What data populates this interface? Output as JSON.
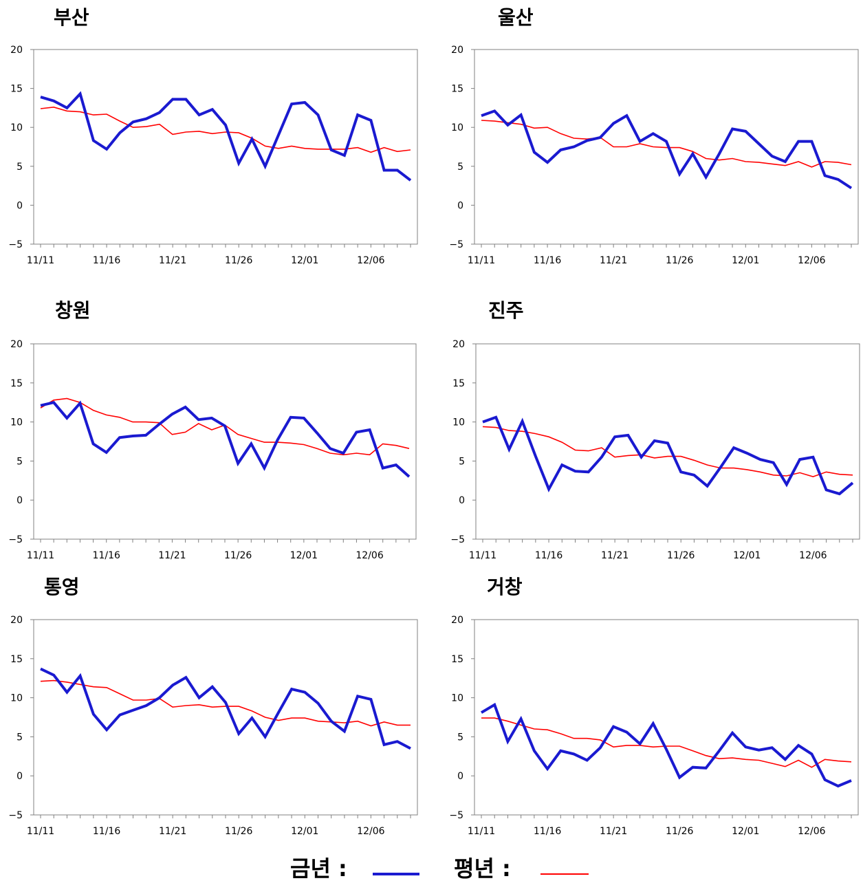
{
  "chart_data": [
    {
      "type": "line",
      "title": "부산",
      "x": [
        "11/11",
        "11/12",
        "11/13",
        "11/14",
        "11/15",
        "11/16",
        "11/17",
        "11/18",
        "11/19",
        "11/20",
        "11/21",
        "11/22",
        "11/23",
        "11/24",
        "11/25",
        "11/26",
        "11/27",
        "11/28",
        "11/29",
        "11/30",
        "12/01",
        "12/02",
        "12/03",
        "12/04",
        "12/05",
        "12/06",
        "12/07",
        "12/08",
        "12/09"
      ],
      "x_tick_labels": [
        "11/11",
        "11/16",
        "11/21",
        "11/26",
        "12/01",
        "12/06"
      ],
      "ylim": [
        -5,
        20
      ],
      "y_ticks": [
        -5,
        0,
        5,
        10,
        15,
        20
      ],
      "series": [
        {
          "name": "금년",
          "color": "#1a1ad0",
          "values": [
            13.9,
            13.4,
            12.5,
            14.3,
            8.3,
            7.2,
            9.3,
            10.7,
            11.1,
            11.9,
            13.6,
            13.6,
            11.6,
            12.3,
            10.3,
            5.4,
            8.5,
            5.0,
            9.0,
            13.0,
            13.2,
            11.6,
            7.1,
            6.4,
            11.6,
            10.9,
            4.5,
            4.5,
            3.2
          ]
        },
        {
          "name": "평년",
          "color": "#ff0000",
          "values": [
            12.4,
            12.6,
            12.1,
            12.0,
            11.6,
            11.7,
            10.8,
            10.0,
            10.1,
            10.4,
            9.1,
            9.4,
            9.5,
            9.2,
            9.4,
            9.3,
            8.6,
            7.6,
            7.3,
            7.6,
            7.3,
            7.2,
            7.2,
            7.2,
            7.4,
            6.8,
            7.4,
            6.9,
            7.1
          ]
        }
      ]
    },
    {
      "type": "line",
      "title": "울산",
      "x": [
        "11/11",
        "11/12",
        "11/13",
        "11/14",
        "11/15",
        "11/16",
        "11/17",
        "11/18",
        "11/19",
        "11/20",
        "11/21",
        "11/22",
        "11/23",
        "11/24",
        "11/25",
        "11/26",
        "11/27",
        "11/28",
        "11/29",
        "11/30",
        "12/01",
        "12/02",
        "12/03",
        "12/04",
        "12/05",
        "12/06",
        "12/07",
        "12/08",
        "12/09"
      ],
      "x_tick_labels": [
        "11/11",
        "11/16",
        "11/21",
        "11/26",
        "12/01",
        "12/06"
      ],
      "ylim": [
        -5,
        20
      ],
      "y_ticks": [
        -5,
        0,
        5,
        10,
        15,
        20
      ],
      "series": [
        {
          "name": "금년",
          "color": "#1a1ad0",
          "values": [
            11.5,
            12.1,
            10.3,
            11.6,
            6.8,
            5.5,
            7.1,
            7.5,
            8.3,
            8.7,
            10.5,
            11.5,
            8.2,
            9.2,
            8.2,
            4.0,
            6.6,
            3.6,
            6.6,
            9.8,
            9.5,
            7.9,
            6.3,
            5.6,
            8.2,
            8.2,
            3.8,
            3.3,
            2.2
          ]
        },
        {
          "name": "평년",
          "color": "#ff0000",
          "values": [
            10.9,
            10.8,
            10.6,
            10.4,
            9.9,
            10.0,
            9.2,
            8.6,
            8.5,
            8.7,
            7.5,
            7.5,
            7.9,
            7.5,
            7.4,
            7.4,
            6.9,
            6.0,
            5.8,
            6.0,
            5.6,
            5.5,
            5.3,
            5.1,
            5.6,
            4.9,
            5.6,
            5.5,
            5.2
          ]
        }
      ]
    },
    {
      "type": "line",
      "title": "창원",
      "x": [
        "11/11",
        "11/12",
        "11/13",
        "11/14",
        "11/15",
        "11/16",
        "11/17",
        "11/18",
        "11/19",
        "11/20",
        "11/21",
        "11/22",
        "11/23",
        "11/24",
        "11/25",
        "11/26",
        "11/27",
        "11/28",
        "11/29",
        "11/30",
        "12/01",
        "12/02",
        "12/03",
        "12/04",
        "12/05",
        "12/06",
        "12/07",
        "12/08",
        "12/09"
      ],
      "x_tick_labels": [
        "11/11",
        "11/16",
        "11/21",
        "11/26",
        "12/01",
        "12/06"
      ],
      "ylim": [
        -5,
        20
      ],
      "y_ticks": [
        -5,
        0,
        5,
        10,
        15,
        20
      ],
      "series": [
        {
          "name": "금년",
          "color": "#1a1ad0",
          "values": [
            12.1,
            12.5,
            10.5,
            12.4,
            7.2,
            6.1,
            8.0,
            8.2,
            8.3,
            9.7,
            11.0,
            11.9,
            10.3,
            10.5,
            9.5,
            4.7,
            7.2,
            4.1,
            7.7,
            10.6,
            10.5,
            8.6,
            6.6,
            6.0,
            8.7,
            9.0,
            4.1,
            4.5,
            3.0
          ]
        },
        {
          "name": "평년",
          "color": "#ff0000",
          "values": [
            11.8,
            12.8,
            13.0,
            12.5,
            11.5,
            10.9,
            10.6,
            10.0,
            10.0,
            9.9,
            8.4,
            8.7,
            9.8,
            9.0,
            9.6,
            8.4,
            7.9,
            7.4,
            7.4,
            7.3,
            7.1,
            6.6,
            6.0,
            5.8,
            6.0,
            5.8,
            7.2,
            7.0,
            6.6
          ]
        }
      ]
    },
    {
      "type": "line",
      "title": "진주",
      "x": [
        "11/11",
        "11/12",
        "11/13",
        "11/14",
        "11/15",
        "11/16",
        "11/17",
        "11/18",
        "11/19",
        "11/20",
        "11/21",
        "11/22",
        "11/23",
        "11/24",
        "11/25",
        "11/26",
        "11/27",
        "11/28",
        "11/29",
        "11/30",
        "12/01",
        "12/02",
        "12/03",
        "12/04",
        "12/05",
        "12/06",
        "12/07",
        "12/08",
        "12/09"
      ],
      "x_tick_labels": [
        "11/11",
        "11/16",
        "11/21",
        "11/26",
        "12/01",
        "12/06"
      ],
      "ylim": [
        -5,
        20
      ],
      "y_ticks": [
        -5,
        0,
        5,
        10,
        15,
        20
      ],
      "series": [
        {
          "name": "금년",
          "color": "#1a1ad0",
          "values": [
            10.0,
            10.6,
            6.5,
            10.1,
            5.6,
            1.4,
            4.5,
            3.7,
            3.6,
            5.5,
            8.1,
            8.3,
            5.5,
            7.6,
            7.3,
            3.6,
            3.2,
            1.8,
            4.2,
            6.7,
            6.0,
            5.2,
            4.8,
            2.0,
            5.2,
            5.5,
            1.3,
            0.8,
            2.2
          ]
        },
        {
          "name": "평년",
          "color": "#ff0000",
          "values": [
            9.4,
            9.3,
            8.9,
            8.8,
            8.5,
            8.1,
            7.4,
            6.4,
            6.3,
            6.7,
            5.5,
            5.7,
            5.8,
            5.4,
            5.6,
            5.6,
            5.1,
            4.5,
            4.1,
            4.1,
            3.9,
            3.6,
            3.2,
            3.1,
            3.5,
            3.0,
            3.6,
            3.3,
            3.2
          ]
        }
      ]
    },
    {
      "type": "line",
      "title": "통영",
      "x": [
        "11/11",
        "11/12",
        "11/13",
        "11/14",
        "11/15",
        "11/16",
        "11/17",
        "11/18",
        "11/19",
        "11/20",
        "11/21",
        "11/22",
        "11/23",
        "11/24",
        "11/25",
        "11/26",
        "11/27",
        "11/28",
        "11/29",
        "11/30",
        "12/01",
        "12/02",
        "12/03",
        "12/04",
        "12/05",
        "12/06",
        "12/07",
        "12/08",
        "12/09"
      ],
      "x_tick_labels": [
        "11/11",
        "11/16",
        "11/21",
        "11/26",
        "12/01",
        "12/06"
      ],
      "ylim": [
        -5,
        20
      ],
      "y_ticks": [
        -5,
        0,
        5,
        10,
        15,
        20
      ],
      "series": [
        {
          "name": "금년",
          "color": "#1a1ad0",
          "values": [
            13.7,
            12.9,
            10.7,
            12.8,
            7.9,
            5.9,
            7.8,
            8.4,
            9.0,
            10.0,
            11.6,
            12.6,
            10.0,
            11.4,
            9.4,
            5.4,
            7.4,
            5.0,
            8.1,
            11.1,
            10.7,
            9.3,
            7.0,
            5.7,
            10.2,
            9.8,
            4.0,
            4.4,
            3.5
          ]
        },
        {
          "name": "평년",
          "color": "#ff0000",
          "values": [
            12.1,
            12.2,
            12.0,
            11.7,
            11.4,
            11.3,
            10.5,
            9.7,
            9.7,
            9.9,
            8.8,
            9.0,
            9.1,
            8.8,
            8.9,
            8.9,
            8.3,
            7.5,
            7.1,
            7.4,
            7.4,
            7.0,
            6.9,
            6.8,
            7.0,
            6.4,
            6.9,
            6.5,
            6.5
          ]
        }
      ]
    },
    {
      "type": "line",
      "title": "거창",
      "x": [
        "11/11",
        "11/12",
        "11/13",
        "11/14",
        "11/15",
        "11/16",
        "11/17",
        "11/18",
        "11/19",
        "11/20",
        "11/21",
        "11/22",
        "11/23",
        "11/24",
        "11/25",
        "11/26",
        "11/27",
        "11/28",
        "11/29",
        "11/30",
        "12/01",
        "12/02",
        "12/03",
        "12/04",
        "12/05",
        "12/06",
        "12/07",
        "12/08",
        "12/09"
      ],
      "x_tick_labels": [
        "11/11",
        "11/16",
        "11/21",
        "11/26",
        "12/01",
        "12/06"
      ],
      "ylim": [
        -5,
        20
      ],
      "y_ticks": [
        -5,
        0,
        5,
        10,
        15,
        20
      ],
      "series": [
        {
          "name": "금년",
          "color": "#1a1ad0",
          "values": [
            8.1,
            9.1,
            4.4,
            7.3,
            3.2,
            0.9,
            3.2,
            2.8,
            2.0,
            3.6,
            6.3,
            5.6,
            4.1,
            6.7,
            3.4,
            -0.2,
            1.1,
            1.0,
            3.2,
            5.5,
            3.7,
            3.3,
            3.6,
            2.1,
            3.9,
            2.8,
            -0.5,
            -1.3,
            -0.6
          ]
        },
        {
          "name": "평년",
          "color": "#ff0000",
          "values": [
            7.4,
            7.4,
            7.0,
            6.5,
            6.0,
            5.9,
            5.4,
            4.8,
            4.8,
            4.6,
            3.7,
            3.9,
            3.9,
            3.7,
            3.8,
            3.8,
            3.2,
            2.6,
            2.2,
            2.3,
            2.1,
            2.0,
            1.6,
            1.2,
            2.0,
            1.1,
            2.1,
            1.9,
            1.8
          ]
        }
      ]
    }
  ],
  "legend": {
    "current_label": "금년 :",
    "normal_label": "평년 :",
    "current_color": "#1a1ad0",
    "normal_color": "#ff0000"
  }
}
